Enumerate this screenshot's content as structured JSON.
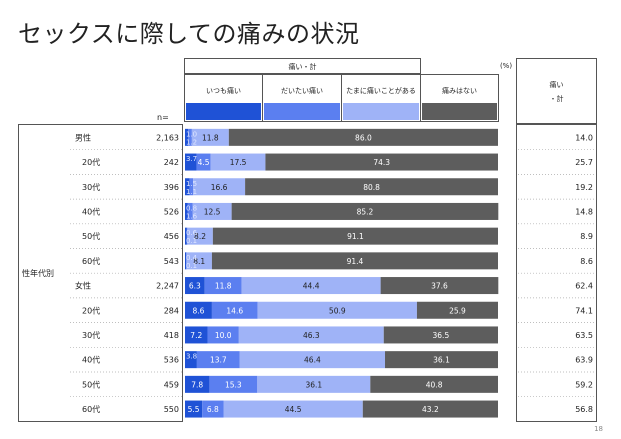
{
  "title": "セックスに際しての痛みの状況",
  "page_number": "18",
  "legend": {
    "group_label": "痛い・計",
    "percent_unit": "(%)",
    "items": [
      {
        "label": "いつも痛い",
        "color": "#1f52d6"
      },
      {
        "label": "だいたい痛い",
        "color": "#5b7ff0"
      },
      {
        "label": "たまに痛いことがある",
        "color": "#9fb3f7"
      },
      {
        "label": "痛みはない",
        "color": "#5d5d5d"
      }
    ],
    "total_header_line1": "痛い",
    "total_header_line2": "・計"
  },
  "n_header": "n=",
  "side_label": "性年代別",
  "chart_data": {
    "type": "bar",
    "stacked": true,
    "orientation": "horizontal",
    "unit": "%",
    "categories": [
      "男性",
      "20代",
      "30代",
      "40代",
      "50代",
      "60代",
      "女性",
      "20代",
      "30代",
      "40代",
      "50代",
      "60代"
    ],
    "n": [
      "2,163",
      "242",
      "396",
      "526",
      "456",
      "543",
      "2,247",
      "284",
      "418",
      "536",
      "459",
      "550"
    ],
    "series": [
      {
        "name": "いつも痛い",
        "values": [
          1.0,
          3.7,
          1.5,
          0.8,
          0.6,
          0.4,
          6.3,
          8.6,
          7.2,
          3.8,
          7.8,
          5.5
        ],
        "labels": [
          "1.0",
          "3.7",
          "1.5",
          "0.8",
          "0.6",
          "0.4",
          "6.3",
          "8.6",
          "7.2",
          "3.8",
          "7.8",
          "5.5"
        ]
      },
      {
        "name": "だいたい痛い",
        "values": [
          1.2,
          4.5,
          1.1,
          1.6,
          0.1,
          0.1,
          11.8,
          14.6,
          10.0,
          13.7,
          15.3,
          6.8
        ],
        "labels": [
          "1.2",
          "4.5",
          "1.1",
          "1.6",
          "0.1",
          "0.1",
          "11.8",
          "14.6",
          "10.0",
          "13.7",
          "15.3",
          "6.8"
        ]
      },
      {
        "name": "たまに痛いことがある",
        "values": [
          11.8,
          17.5,
          16.6,
          12.5,
          8.2,
          8.1,
          44.4,
          50.9,
          46.3,
          46.4,
          36.1,
          44.5
        ],
        "labels": [
          "11.8",
          "17.5",
          "16.6",
          "12.5",
          "8.2",
          "8.1",
          "44.4",
          "50.9",
          "46.3",
          "46.4",
          "36.1",
          "44.5"
        ]
      },
      {
        "name": "痛みはない",
        "values": [
          86.0,
          74.3,
          80.8,
          85.2,
          91.1,
          91.4,
          37.6,
          25.9,
          36.5,
          36.1,
          40.8,
          43.2
        ],
        "labels": [
          "86.0",
          "74.3",
          "80.8",
          "85.2",
          "91.1",
          "91.4",
          "37.6",
          "25.9",
          "36.5",
          "36.1",
          "40.8",
          "43.2"
        ]
      }
    ],
    "total": {
      "name": "痛い・計",
      "values": [
        14.0,
        25.7,
        19.2,
        14.8,
        8.9,
        8.6,
        62.4,
        74.1,
        63.5,
        63.9,
        59.2,
        56.8
      ],
      "labels": [
        "14.0",
        "25.7",
        "19.2",
        "14.8",
        "8.9",
        "8.6",
        "62.4",
        "74.1",
        "63.5",
        "63.9",
        "59.2",
        "56.8"
      ]
    }
  }
}
